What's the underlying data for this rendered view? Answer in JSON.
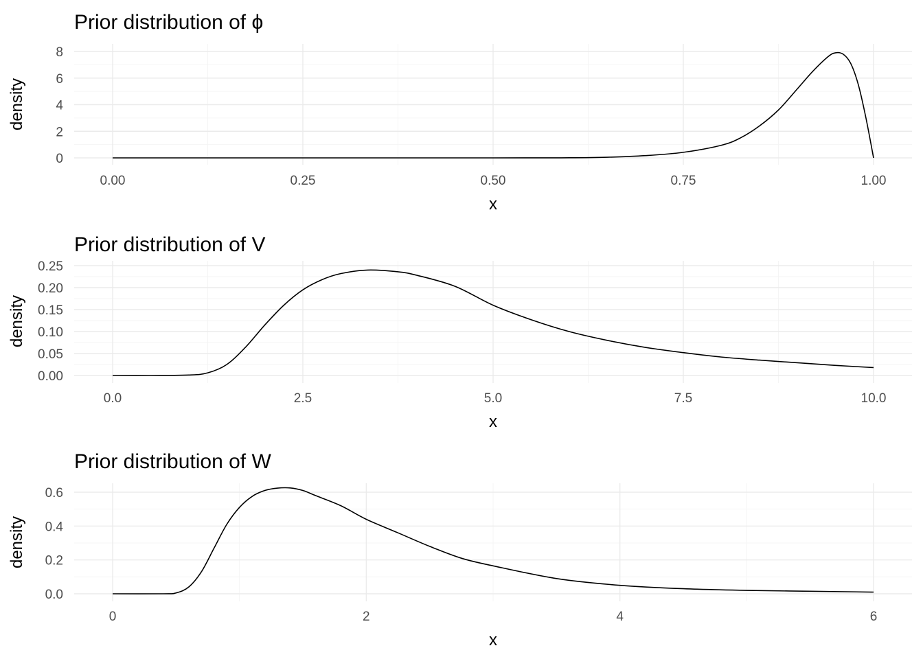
{
  "chart_data": [
    {
      "type": "line",
      "title": "Prior distribution of ϕ",
      "xlabel": "x",
      "ylabel": "density",
      "xlim": [
        0,
        1
      ],
      "ylim": [
        0,
        8
      ],
      "x_ticks": [
        0,
        0.25,
        0.5,
        0.75,
        1
      ],
      "x_tick_labels": [
        "0.00",
        "0.25",
        "0.50",
        "0.75",
        "1.00"
      ],
      "y_ticks": [
        0,
        2,
        4,
        6,
        8
      ],
      "y_tick_labels": [
        "0",
        "2",
        "4",
        "6",
        "8"
      ],
      "grid": true,
      "series": [
        {
          "x": [
            0,
            0.5,
            0.6,
            0.65,
            0.7,
            0.75,
            0.8,
            0.825,
            0.85,
            0.875,
            0.9,
            0.92,
            0.94,
            0.95,
            0.96,
            0.97,
            0.98,
            0.99,
            1.0
          ],
          "y": [
            0,
            0,
            0.01,
            0.05,
            0.17,
            0.42,
            0.95,
            1.5,
            2.4,
            3.6,
            5.2,
            6.5,
            7.6,
            7.9,
            7.8,
            7.1,
            5.5,
            3.0,
            0
          ]
        }
      ]
    },
    {
      "type": "line",
      "title": "Prior distribution of V",
      "xlabel": "x",
      "ylabel": "density",
      "xlim": [
        0,
        10
      ],
      "ylim": [
        0,
        0.25
      ],
      "x_ticks": [
        0,
        2.5,
        5,
        7.5,
        10
      ],
      "x_tick_labels": [
        "0.0",
        "2.5",
        "5.0",
        "7.5",
        "10.0"
      ],
      "y_ticks": [
        0,
        0.05,
        0.1,
        0.15,
        0.2,
        0.25
      ],
      "y_tick_labels": [
        "0.00",
        "0.05",
        "0.10",
        "0.15",
        "0.20",
        "0.25"
      ],
      "grid": true,
      "series": [
        {
          "x": [
            0,
            0.5,
            1.0,
            1.25,
            1.5,
            1.75,
            2.0,
            2.25,
            2.5,
            2.75,
            3.0,
            3.35,
            3.75,
            4.0,
            4.5,
            5.0,
            5.5,
            6.0,
            6.5,
            7.0,
            7.5,
            8.0,
            8.5,
            9.0,
            9.5,
            10.0
          ],
          "y": [
            0,
            0,
            0.001,
            0.006,
            0.025,
            0.065,
            0.115,
            0.16,
            0.195,
            0.218,
            0.232,
            0.24,
            0.236,
            0.228,
            0.203,
            0.16,
            0.127,
            0.1,
            0.08,
            0.064,
            0.052,
            0.042,
            0.035,
            0.029,
            0.023,
            0.018
          ]
        }
      ]
    },
    {
      "type": "line",
      "title": "Prior distribution of W",
      "xlabel": "x",
      "ylabel": "density",
      "xlim": [
        0,
        6
      ],
      "ylim": [
        0,
        0.6
      ],
      "x_ticks": [
        0,
        2,
        4,
        6
      ],
      "x_tick_labels": [
        "0",
        "2",
        "4",
        "6"
      ],
      "y_ticks": [
        0,
        0.2,
        0.4,
        0.6
      ],
      "y_tick_labels": [
        "0.0",
        "0.2",
        "0.4",
        "0.6"
      ],
      "grid": true,
      "series": [
        {
          "x": [
            0,
            0.4,
            0.5,
            0.6,
            0.7,
            0.8,
            0.9,
            1.0,
            1.1,
            1.2,
            1.3,
            1.4,
            1.5,
            1.6,
            1.8,
            2.0,
            2.25,
            2.5,
            2.75,
            3.0,
            3.5,
            4.0,
            4.5,
            5.0,
            5.5,
            6.0
          ],
          "y": [
            0,
            0,
            0.005,
            0.04,
            0.13,
            0.27,
            0.41,
            0.51,
            0.575,
            0.61,
            0.624,
            0.625,
            0.61,
            0.58,
            0.52,
            0.44,
            0.36,
            0.28,
            0.21,
            0.165,
            0.09,
            0.05,
            0.03,
            0.02,
            0.015,
            0.01
          ]
        }
      ]
    }
  ]
}
